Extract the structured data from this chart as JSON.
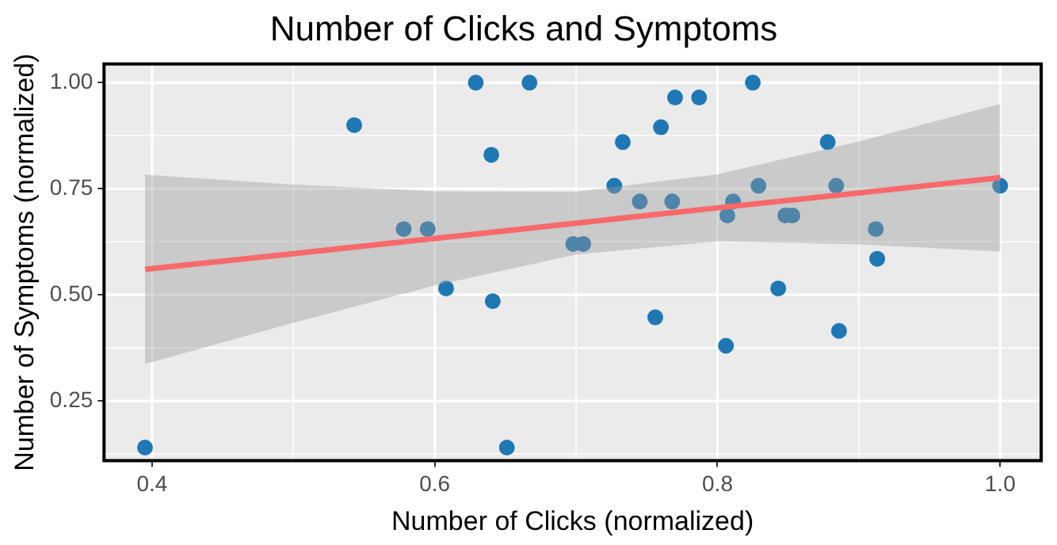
{
  "chart_data": {
    "type": "scatter",
    "title": "Number of Clicks and Symptoms",
    "xlabel": "Number of Clicks (normalized)",
    "ylabel": "Number of Symptoms (normalized)",
    "xlim": [
      0.366,
      1.029
    ],
    "xticks": [
      {
        "value": 0.4,
        "label": "0.4"
      },
      {
        "value": 0.6,
        "label": "0.6"
      },
      {
        "value": 0.8,
        "label": "0.8"
      },
      {
        "value": 1.0,
        "label": "1.0"
      }
    ],
    "ylim": [
      0.109,
      1.044
    ],
    "yticks": [
      {
        "value": 0.25,
        "label": "0.25"
      },
      {
        "value": 0.5,
        "label": "0.50"
      },
      {
        "value": 0.75,
        "label": "0.75"
      },
      {
        "value": 1.0,
        "label": "1.00"
      }
    ],
    "grid": true,
    "legend": false,
    "series": [
      {
        "type": "scatter",
        "marker": "circle",
        "color": "#1f78b4",
        "x": [
          0.395,
          0.543,
          0.578,
          0.595,
          0.608,
          0.629,
          0.64,
          0.641,
          0.651,
          0.667,
          0.698,
          0.705,
          0.727,
          0.733,
          0.745,
          0.756,
          0.76,
          0.768,
          0.77,
          0.787,
          0.806,
          0.807,
          0.811,
          0.825,
          0.829,
          0.843,
          0.848,
          0.853,
          0.878,
          0.884,
          0.886,
          0.912,
          0.913,
          1.0
        ],
        "values": [
          0.14,
          0.9,
          0.655,
          0.655,
          0.515,
          1.0,
          0.83,
          0.485,
          0.14,
          1.0,
          0.62,
          0.62,
          0.757,
          0.86,
          0.72,
          0.447,
          0.895,
          0.72,
          0.965,
          0.965,
          0.38,
          0.687,
          0.72,
          1.0,
          0.757,
          0.515,
          0.687,
          0.687,
          0.86,
          0.757,
          0.415,
          0.655,
          0.585,
          0.757
        ]
      },
      {
        "type": "line",
        "marker": "none",
        "color": "#f8696b",
        "x": [
          0.395,
          0.5,
          0.6,
          0.7,
          0.8,
          0.9,
          1.0
        ],
        "values": [
          0.56,
          0.597,
          0.633,
          0.669,
          0.705,
          0.74,
          0.776
        ],
        "lower": [
          0.337,
          0.434,
          0.522,
          0.595,
          0.626,
          0.619,
          0.602
        ],
        "upper": [
          0.783,
          0.76,
          0.744,
          0.743,
          0.784,
          0.861,
          0.95
        ]
      }
    ]
  }
}
